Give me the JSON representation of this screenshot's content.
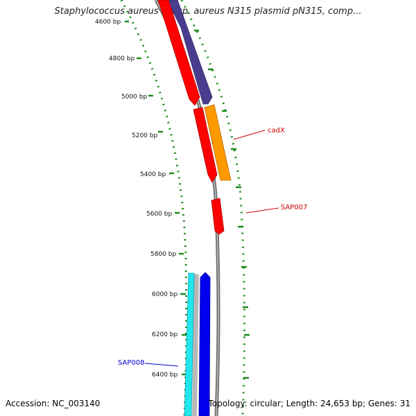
{
  "title": "Staphylococcus aureus subsp. aureus N315 plasmid pN315, comp...",
  "footer": {
    "accession": "Accession: NC_003140",
    "summary": "Topology: circular; Length: 24,653 bp; Genes: 31"
  },
  "ruler_labels": [
    "4600 bp",
    "4800 bp",
    "5000 bp",
    "5200 bp",
    "5400 bp",
    "5600 bp",
    "5800 bp",
    "6000 bp",
    "6200 bp",
    "6400 bp"
  ],
  "gene_labels": [
    {
      "text": "cadX",
      "color": "#cc0000"
    },
    {
      "text": "SAP007",
      "color": "#cc0000"
    },
    {
      "text": "SAP008",
      "color": "#0000cc"
    }
  ],
  "colors": {
    "backbone": "#8a8a8a",
    "tick": "#1a8a1a",
    "cds_forward": "#ff0000",
    "cds_reverse": "#4a3d8f",
    "cds_orange": "#ff9900",
    "cds_blue": "#0000ee",
    "cds_cyan": "#22e6ee"
  }
}
